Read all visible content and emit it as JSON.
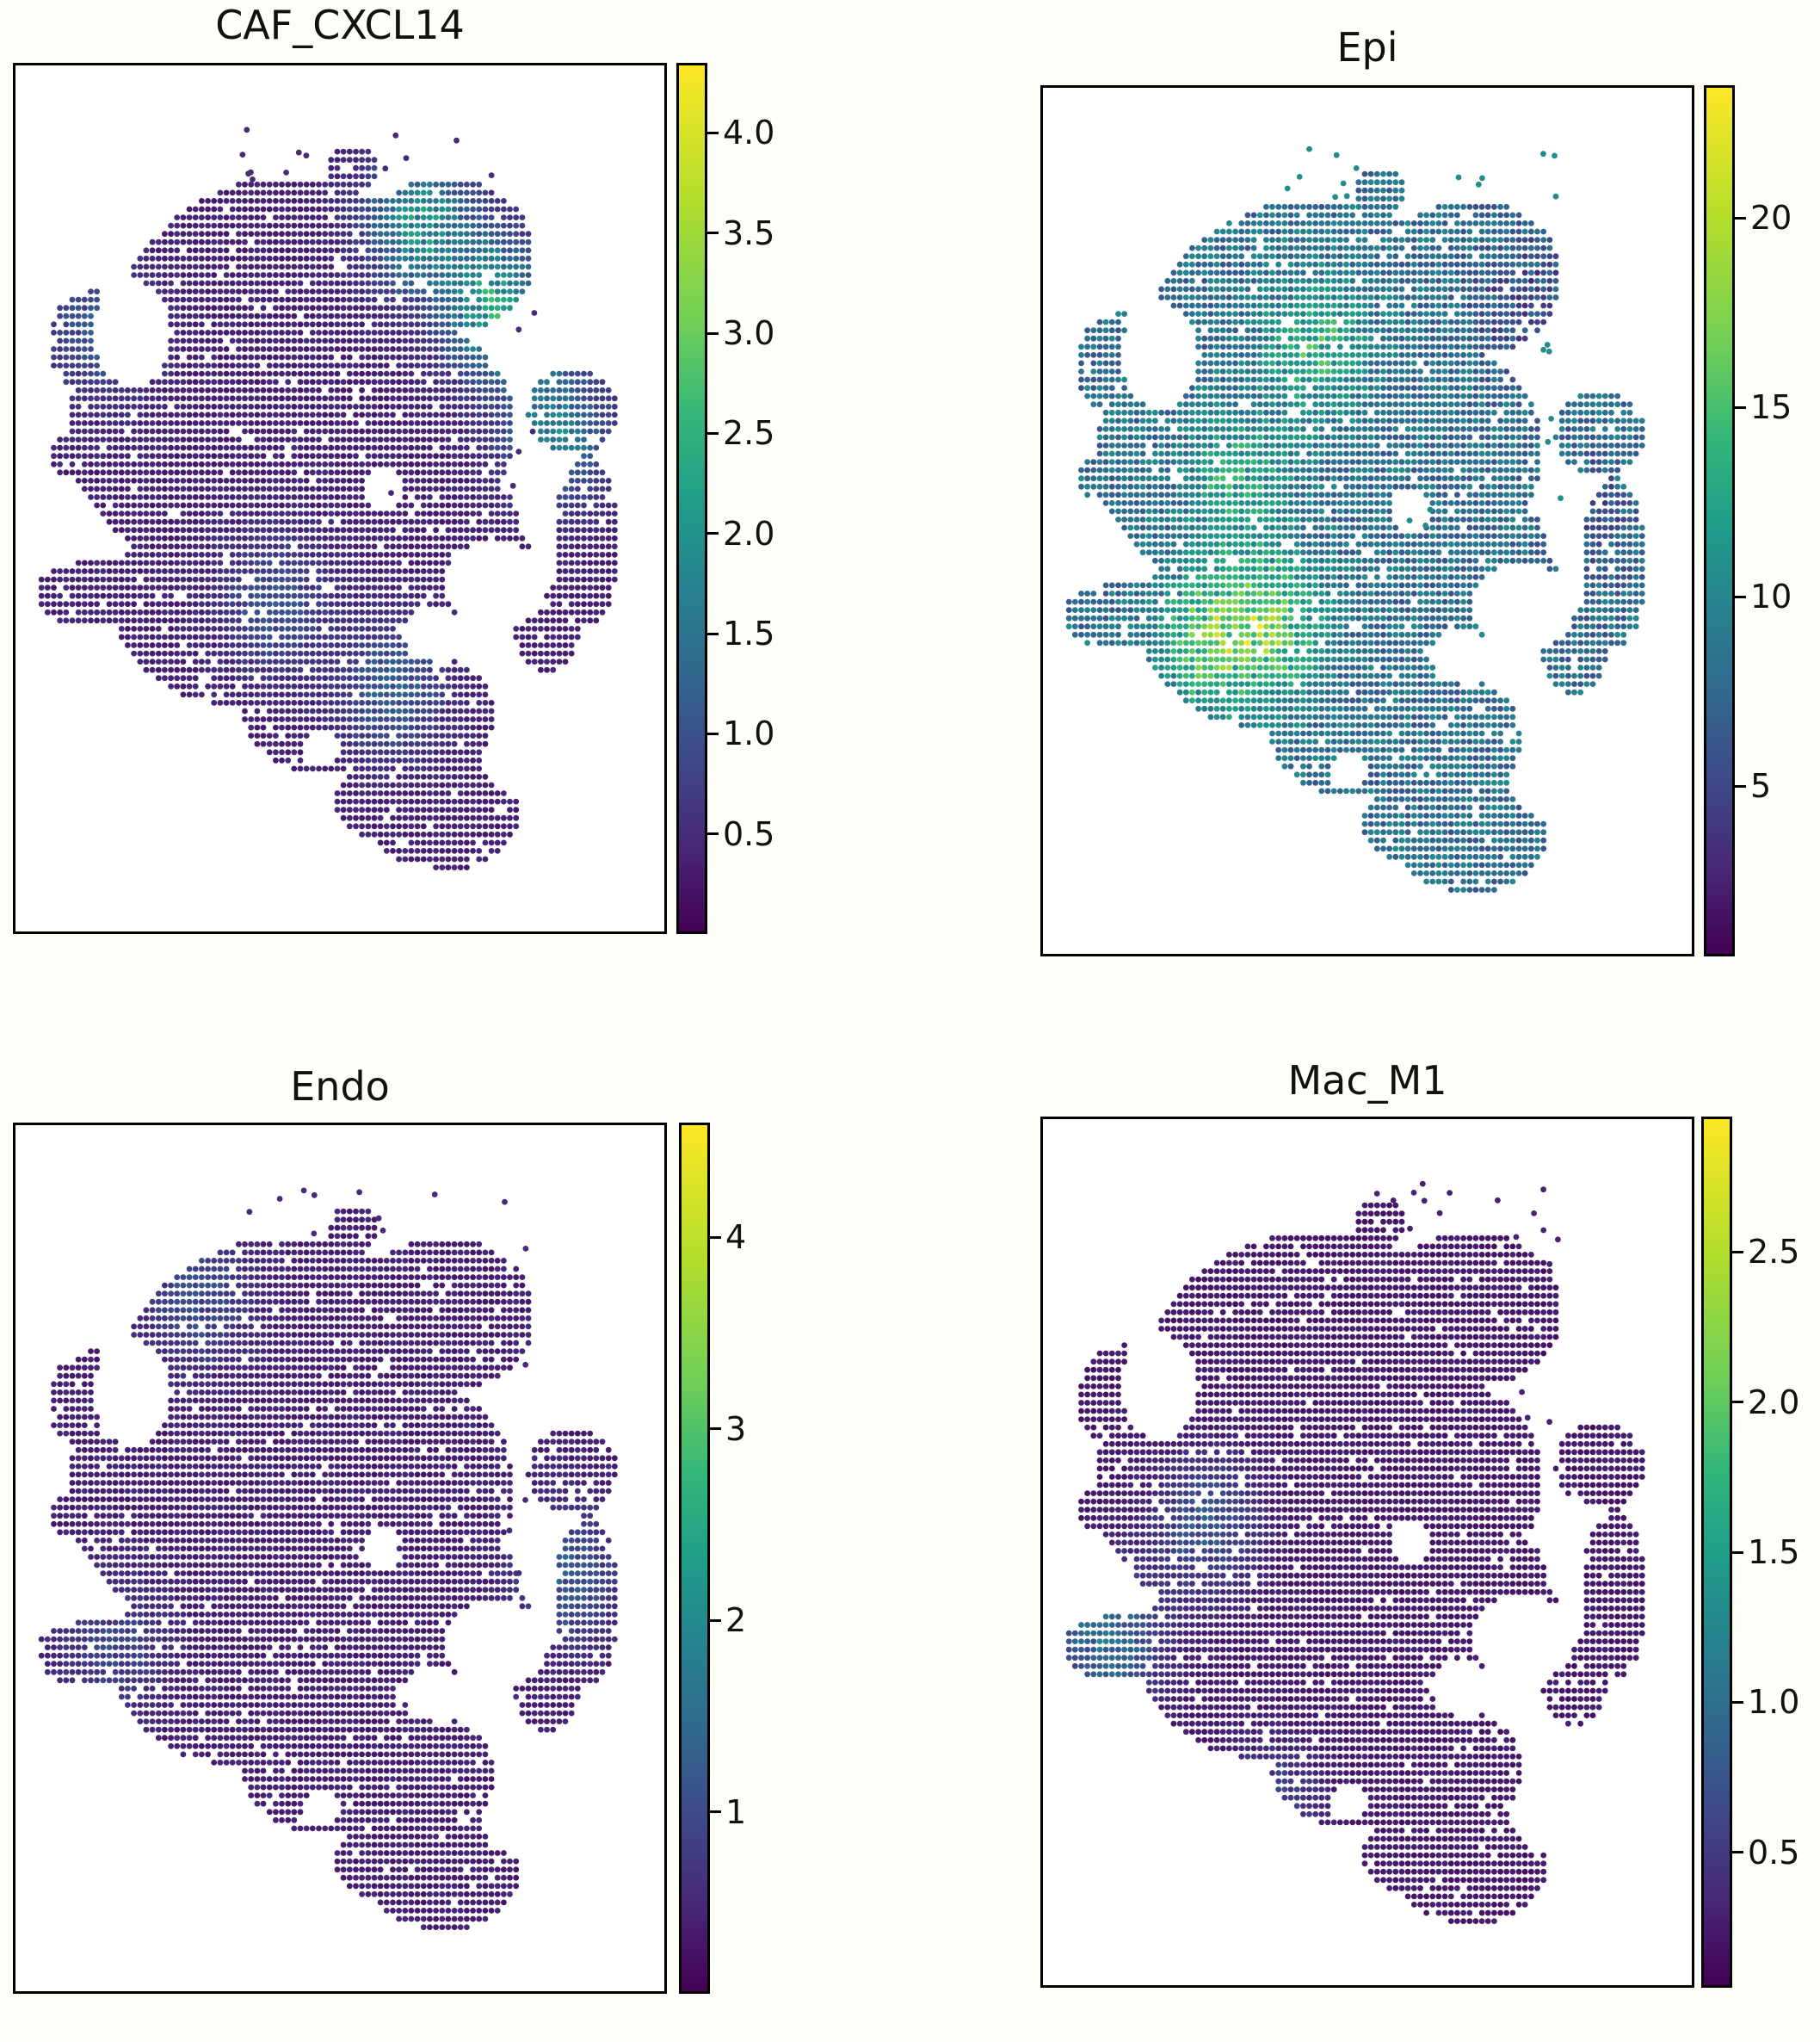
{
  "chart_data": [
    {
      "type": "scatter",
      "title": "CAF_CXCL14",
      "colormap": "viridis",
      "colorbar": {
        "vmin": 0.0,
        "vmax": 4.35,
        "ticks": [
          "0.5",
          "1.0",
          "1.5",
          "2.0",
          "2.5",
          "3.0",
          "3.5",
          "4.0"
        ],
        "tick_values": [
          0.5,
          1.0,
          1.5,
          2.0,
          2.5,
          3.0,
          3.5,
          4.0
        ]
      },
      "grid": false,
      "axes_visible": false,
      "base_value": 0.4,
      "hotspots": [
        {
          "x": 0.62,
          "y": 0.18,
          "v": 2.8
        },
        {
          "x": 0.74,
          "y": 0.28,
          "v": 3.2
        },
        {
          "x": 0.83,
          "y": 0.42,
          "v": 2.4
        },
        {
          "x": 0.58,
          "y": 0.72,
          "v": 1.6
        },
        {
          "x": 0.4,
          "y": 0.62,
          "v": 1.4
        },
        {
          "x": 0.13,
          "y": 0.3,
          "v": 1.5
        }
      ]
    },
    {
      "type": "scatter",
      "title": "Epi",
      "colormap": "viridis",
      "colorbar": {
        "vmin": 0.5,
        "vmax": 23.5,
        "ticks": [
          "5",
          "10",
          "15",
          "20"
        ],
        "tick_values": [
          5,
          10,
          15,
          20
        ]
      },
      "grid": false,
      "axes_visible": false,
      "base_value": 9.0,
      "hotspots": [
        {
          "x": 0.35,
          "y": 0.62,
          "v": 20
        },
        {
          "x": 0.25,
          "y": 0.64,
          "v": 19
        },
        {
          "x": 0.42,
          "y": 0.3,
          "v": 17
        },
        {
          "x": 0.3,
          "y": 0.45,
          "v": 16
        },
        {
          "x": 0.75,
          "y": 0.25,
          "v": 4
        },
        {
          "x": 0.85,
          "y": 0.5,
          "v": 6
        }
      ]
    },
    {
      "type": "scatter",
      "title": "Endo",
      "colormap": "viridis",
      "colorbar": {
        "vmin": 0.05,
        "vmax": 4.6,
        "ticks": [
          "1",
          "2",
          "3",
          "4"
        ],
        "tick_values": [
          1,
          2,
          3,
          4
        ]
      },
      "grid": false,
      "axes_visible": false,
      "base_value": 0.45,
      "hotspots": [
        {
          "x": 0.28,
          "y": 0.2,
          "v": 1.4
        },
        {
          "x": 0.85,
          "y": 0.52,
          "v": 1.6
        },
        {
          "x": 0.15,
          "y": 0.6,
          "v": 1.2
        }
      ]
    },
    {
      "type": "scatter",
      "title": "Mac_M1",
      "colormap": "viridis",
      "colorbar": {
        "vmin": 0.05,
        "vmax": 2.95,
        "ticks": [
          "0.5",
          "1.0",
          "1.5",
          "2.0",
          "2.5"
        ],
        "tick_values": [
          0.5,
          1.0,
          1.5,
          2.0,
          2.5
        ]
      },
      "grid": false,
      "axes_visible": false,
      "base_value": 0.25,
      "hotspots": [
        {
          "x": 0.1,
          "y": 0.6,
          "v": 1.4
        },
        {
          "x": 0.25,
          "y": 0.47,
          "v": 1.0
        },
        {
          "x": 0.35,
          "y": 0.8,
          "v": 0.8
        }
      ]
    }
  ]
}
